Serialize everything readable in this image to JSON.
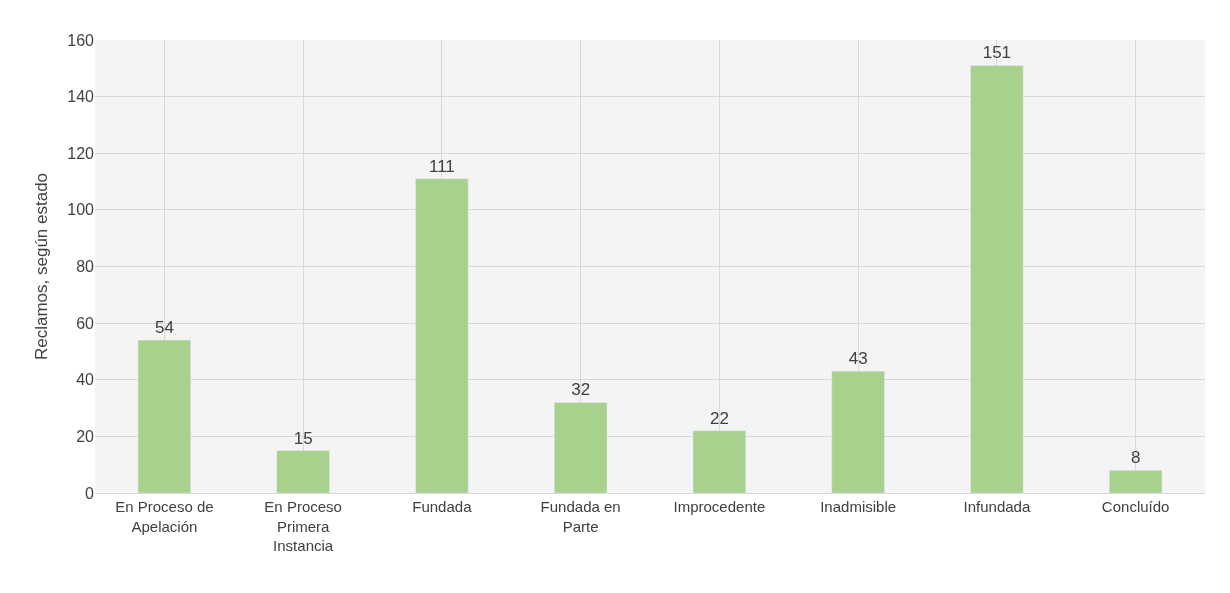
{
  "chart_data": {
    "type": "bar",
    "ylabel": "Reclamos, según estado",
    "categories": [
      "En Proceso de Apelación",
      "En Proceso Primera Instancia",
      "Fundada",
      "Fundada en Parte",
      "Improcedente",
      "Inadmisible",
      "Infundada",
      "Concluído"
    ],
    "values": [
      54,
      15,
      111,
      32,
      22,
      43,
      151,
      8
    ],
    "color": "#a9d18e",
    "ylim": [
      0,
      160
    ],
    "yticks": [
      0,
      20,
      40,
      60,
      80,
      100,
      120,
      140,
      160
    ],
    "grid": true,
    "data_labels": true,
    "legend": false
  }
}
